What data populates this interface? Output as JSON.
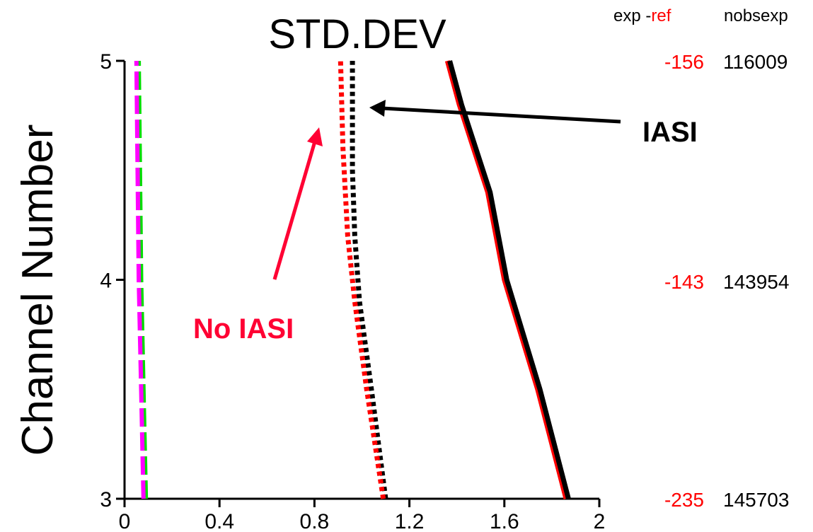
{
  "chart_data": {
    "type": "line",
    "title": "STD.DEV",
    "ylabel": "Channel Number",
    "xlabel": "",
    "xlim": [
      0,
      2
    ],
    "ylim": [
      3,
      5
    ],
    "x_ticks": [
      "0",
      "0.4",
      "0.8",
      "1.2",
      "1.6",
      "2"
    ],
    "y_ticks": [
      "3",
      "4",
      "5"
    ],
    "grid": false,
    "series": [
      {
        "style": "dashed",
        "color": "#00dd00",
        "points": [
          [
            0.09,
            3
          ],
          [
            0.08,
            3.5
          ],
          [
            0.07,
            4
          ],
          [
            0.06,
            5
          ]
        ]
      },
      {
        "style": "dashed",
        "color": "#ff00ff",
        "points": [
          [
            0.08,
            3
          ],
          [
            0.07,
            3.5
          ],
          [
            0.06,
            4
          ],
          [
            0.05,
            5
          ]
        ]
      },
      {
        "style": "dotted",
        "color": "#000000",
        "points": [
          [
            1.1,
            3
          ],
          [
            1.04,
            3.5
          ],
          [
            0.99,
            3.9
          ],
          [
            0.97,
            4.2
          ],
          [
            0.96,
            4.5
          ],
          [
            0.96,
            5
          ]
        ]
      },
      {
        "style": "dotted",
        "color": "#ff0000",
        "points": [
          [
            1.09,
            3
          ],
          [
            1.02,
            3.5
          ],
          [
            0.97,
            3.9
          ],
          [
            0.94,
            4.2
          ],
          [
            0.92,
            4.6
          ],
          [
            0.91,
            5
          ]
        ]
      },
      {
        "style": "solid",
        "color": "#ff0000",
        "points": [
          [
            1.86,
            3
          ],
          [
            1.74,
            3.5
          ],
          [
            1.6,
            4.0
          ],
          [
            1.53,
            4.4
          ],
          [
            1.41,
            4.8
          ],
          [
            1.36,
            5
          ]
        ]
      },
      {
        "style": "solid",
        "color": "#000000",
        "points": [
          [
            1.87,
            3
          ],
          [
            1.75,
            3.5
          ],
          [
            1.61,
            4.0
          ],
          [
            1.54,
            4.4
          ],
          [
            1.42,
            4.8
          ],
          [
            1.37,
            5
          ]
        ]
      }
    ],
    "annotations": [
      {
        "text": "IASI",
        "color": "#000000"
      },
      {
        "text": "No IASI",
        "color": "#ff0033"
      }
    ],
    "side_table": {
      "header_exp": "exp -",
      "header_ref": "ref",
      "header_nobs": "nobsexp",
      "rows": [
        {
          "channel": 5,
          "diff": "-156",
          "nobs": "116009"
        },
        {
          "channel": 4,
          "diff": "-143",
          "nobs": "143954"
        },
        {
          "channel": 3,
          "diff": "-235",
          "nobs": "145703"
        }
      ]
    }
  }
}
